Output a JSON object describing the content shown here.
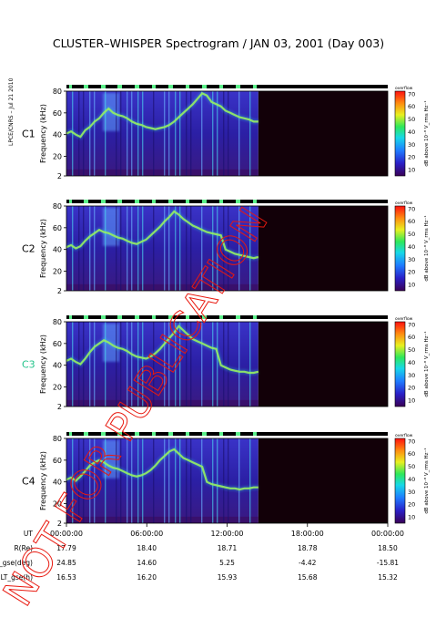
{
  "title": "CLUSTER–WHISPER Spectrogram / JAN 03, 2001 (Day 003)",
  "side_label": "LPCE/CNRS – Jul 21 2010",
  "watermark": "NOT FOR PUBLICATION",
  "colors": {
    "blank_region": "#120008",
    "panel_bg": "#2a1fa8",
    "watermark": "#e8190f",
    "c3_label": "#22c38a"
  },
  "chart_data": [
    {
      "type": "heatmap",
      "spacecraft": "C1",
      "ylabel": "Frequency (kHz)",
      "yticks": [
        2,
        20,
        40,
        60,
        80
      ],
      "ylim": [
        2,
        80
      ],
      "xlim": [
        "00:00:00",
        "24:00:00"
      ],
      "data_coverage": [
        "00:00:00",
        "14:20:00"
      ],
      "colorbar": {
        "label": "dB above 10⁻⁸ V_rms Hz⁻¹",
        "ticks": [
          10,
          20,
          30,
          40,
          50,
          60,
          70
        ],
        "overflow_label": "overflow"
      },
      "trace_khz": [
        41,
        43,
        40,
        38,
        44,
        47,
        52,
        55,
        60,
        64,
        60,
        58,
        57,
        55,
        52,
        50,
        49,
        47,
        46,
        45,
        46,
        47,
        49,
        52,
        56,
        60,
        64,
        68,
        73,
        78,
        76,
        70,
        68,
        66,
        62,
        60,
        58,
        56,
        55,
        54,
        52,
        52
      ]
    },
    {
      "type": "heatmap",
      "spacecraft": "C2",
      "ylabel": "Frequency (kHz)",
      "yticks": [
        2,
        20,
        40,
        60,
        80
      ],
      "ylim": [
        2,
        80
      ],
      "xlim": [
        "00:00:00",
        "24:00:00"
      ],
      "data_coverage": [
        "00:00:00",
        "14:20:00"
      ],
      "colorbar": {
        "label": "dB above 10⁻⁸ V_rms Hz⁻¹",
        "ticks": [
          10,
          20,
          30,
          40,
          50,
          60,
          70
        ],
        "overflow_label": "overflow"
      },
      "trace_khz": [
        42,
        44,
        41,
        43,
        48,
        52,
        55,
        58,
        56,
        55,
        53,
        51,
        50,
        48,
        46,
        45,
        47,
        49,
        53,
        57,
        61,
        66,
        70,
        75,
        72,
        68,
        65,
        62,
        60,
        58,
        56,
        55,
        54,
        53,
        40,
        38,
        36,
        35,
        34,
        33,
        32,
        33
      ]
    },
    {
      "type": "heatmap",
      "spacecraft": "C3",
      "ylabel": "Frequency (kHz)",
      "yticks": [
        2,
        20,
        40,
        60,
        80
      ],
      "ylim": [
        2,
        80
      ],
      "xlim": [
        "00:00:00",
        "24:00:00"
      ],
      "data_coverage": [
        "00:00:00",
        "14:20:00"
      ],
      "colorbar": {
        "label": "dB above 10⁻⁸ V_rms Hz⁻¹",
        "ticks": [
          10,
          20,
          30,
          40,
          50,
          60,
          70
        ],
        "overflow_label": "overflow"
      },
      "trace_khz": [
        44,
        46,
        43,
        41,
        46,
        52,
        57,
        60,
        63,
        61,
        58,
        56,
        55,
        53,
        50,
        48,
        47,
        46,
        48,
        51,
        55,
        60,
        65,
        70,
        76,
        72,
        68,
        64,
        62,
        60,
        58,
        56,
        55,
        40,
        38,
        36,
        35,
        34,
        34,
        33,
        33,
        34
      ]
    },
    {
      "type": "heatmap",
      "spacecraft": "C4",
      "ylabel": "Frequency (kHz)",
      "yticks": [
        2,
        20,
        40,
        60,
        80
      ],
      "ylim": [
        2,
        80
      ],
      "xlim": [
        "00:00:00",
        "24:00:00"
      ],
      "data_coverage": [
        "00:00:00",
        "14:20:00"
      ],
      "colorbar": {
        "label": "dB above 10⁻⁸ V_rms Hz⁻¹",
        "ticks": [
          10,
          20,
          30,
          40,
          50,
          60,
          70
        ],
        "overflow_label": "overflow"
      },
      "trace_khz": [
        42,
        44,
        41,
        45,
        50,
        55,
        58,
        60,
        58,
        55,
        53,
        52,
        50,
        48,
        46,
        45,
        46,
        48,
        51,
        55,
        60,
        64,
        68,
        70,
        66,
        62,
        60,
        58,
        56,
        54,
        40,
        38,
        37,
        36,
        35,
        34,
        34,
        33,
        34,
        34,
        35,
        35
      ]
    }
  ],
  "xaxis": {
    "row_labels": [
      "UT",
      "R(Re)",
      "Lat_gse(deg)",
      "LT_gse(h)"
    ],
    "ticks": [
      {
        "UT": "00:00:00",
        "R": "17.79",
        "Lat": "24.85",
        "LT": "16.53"
      },
      {
        "UT": "06:00:00",
        "R": "18.40",
        "Lat": "14.60",
        "LT": "16.20"
      },
      {
        "UT": "12:00:00",
        "R": "18.71",
        "Lat": "5.25",
        "LT": "15.93"
      },
      {
        "UT": "18:00:00",
        "R": "18.78",
        "Lat": "-4.42",
        "LT": "15.68"
      },
      {
        "UT": "00:00:00",
        "R": "18.50",
        "Lat": "-15.81",
        "LT": "15.32"
      }
    ]
  }
}
